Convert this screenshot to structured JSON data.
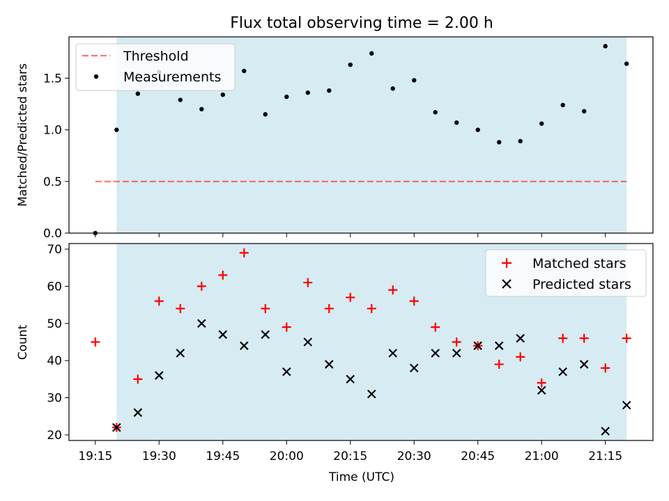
{
  "figure": {
    "title": "Flux total observing time = 2.00 h",
    "xlabel": "Time (UTC)",
    "x_ticks": [
      "19:15",
      "19:30",
      "19:45",
      "20:00",
      "20:15",
      "20:30",
      "20:45",
      "21:00",
      "21:15"
    ],
    "x_tick_minutes": [
      0,
      15,
      30,
      45,
      60,
      75,
      90,
      105,
      120
    ],
    "xlim_minutes": [
      -6.2,
      131.2
    ],
    "shaded_interval_minutes": [
      5,
      125
    ],
    "colors": {
      "shade": "#add8e6",
      "threshold": "#ff0000",
      "measurements": "#000000",
      "matched": "#ff0000",
      "predicted": "#000000"
    }
  },
  "chart_data": [
    {
      "type": "scatter",
      "ylabel": "Matched/Predicted stars",
      "ylim": [
        0,
        1.9
      ],
      "y_ticks": [
        "0.0",
        "0.5",
        "1.0",
        "1.5"
      ],
      "y_tick_values": [
        0,
        0.5,
        1.0,
        1.5
      ],
      "legend_position": "top-left",
      "x_minutes": [
        0,
        5,
        10,
        15,
        20,
        25,
        30,
        35,
        40,
        45,
        50,
        55,
        60,
        65,
        70,
        75,
        80,
        85,
        90,
        95,
        100,
        105,
        110,
        115,
        120,
        125
      ],
      "series": [
        {
          "name": "Threshold",
          "style": "dashed-line",
          "x_minutes": [
            0,
            125
          ],
          "values": [
            0.5,
            0.5
          ]
        },
        {
          "name": "Measurements",
          "style": "dot",
          "values": [
            0.0,
            1.0,
            1.35,
            1.56,
            1.29,
            1.2,
            1.34,
            1.57,
            1.15,
            1.32,
            1.36,
            1.38,
            1.63,
            1.74,
            1.4,
            1.48,
            1.17,
            1.07,
            1.0,
            0.88,
            0.89,
            1.06,
            1.24,
            1.18,
            1.81,
            1.64
          ]
        }
      ]
    },
    {
      "type": "scatter",
      "ylabel": "Count",
      "ylim": [
        18.5,
        71.5
      ],
      "y_ticks": [
        "20",
        "30",
        "40",
        "50",
        "60",
        "70"
      ],
      "y_tick_values": [
        20,
        30,
        40,
        50,
        60,
        70
      ],
      "legend_position": "top-right",
      "x_minutes": [
        0,
        5,
        10,
        15,
        20,
        25,
        30,
        35,
        40,
        45,
        50,
        55,
        60,
        65,
        70,
        75,
        80,
        85,
        90,
        95,
        100,
        105,
        110,
        115,
        120,
        125
      ],
      "series": [
        {
          "name": "Matched stars",
          "style": "plus",
          "values": [
            45,
            22,
            35,
            56,
            54,
            60,
            63,
            69,
            54,
            49,
            61,
            54,
            57,
            54,
            59,
            56,
            49,
            45,
            44,
            39,
            41,
            34,
            46,
            46,
            38,
            46
          ]
        },
        {
          "name": "Predicted stars",
          "style": "x",
          "values": [
            null,
            22,
            26,
            36,
            42,
            50,
            47,
            44,
            47,
            37,
            45,
            39,
            35,
            31,
            42,
            38,
            42,
            42,
            44,
            44,
            46,
            32,
            37,
            39,
            21,
            28
          ]
        }
      ]
    }
  ]
}
